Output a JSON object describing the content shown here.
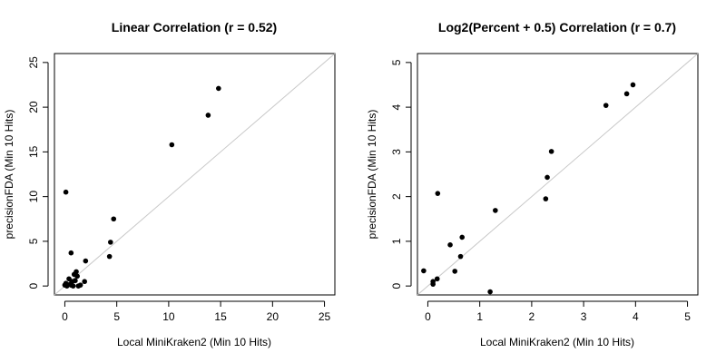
{
  "chart_data": [
    {
      "type": "scatter",
      "title": "Linear Correlation (r = 0.52)",
      "xlabel": "Local MiniKraken2 (Min 10 Hits)",
      "ylabel": "precisionFDA (Min 10 Hits)",
      "xlim": [
        -1,
        26
      ],
      "ylim": [
        -1,
        26
      ],
      "xticks": [
        0,
        5,
        10,
        15,
        20,
        25
      ],
      "yticks": [
        0,
        5,
        10,
        15,
        20,
        25
      ],
      "reference_line": "y = x",
      "grid": false,
      "points": [
        {
          "x": 0.0,
          "y": 0.1
        },
        {
          "x": 0.1,
          "y": 0.3
        },
        {
          "x": 0.2,
          "y": 0.0
        },
        {
          "x": 0.4,
          "y": 0.8
        },
        {
          "x": 0.5,
          "y": 0.2
        },
        {
          "x": 0.6,
          "y": 0.1
        },
        {
          "x": 0.7,
          "y": 0.5
        },
        {
          "x": 0.8,
          "y": 0.0
        },
        {
          "x": 0.9,
          "y": 1.3
        },
        {
          "x": 1.0,
          "y": 0.6
        },
        {
          "x": 1.1,
          "y": 1.6
        },
        {
          "x": 1.2,
          "y": 1.1
        },
        {
          "x": 1.3,
          "y": 0.0
        },
        {
          "x": 1.5,
          "y": 0.1
        },
        {
          "x": 1.9,
          "y": 0.5
        },
        {
          "x": 2.0,
          "y": 2.8
        },
        {
          "x": 0.6,
          "y": 3.7
        },
        {
          "x": 0.1,
          "y": 10.5
        },
        {
          "x": 4.3,
          "y": 3.3
        },
        {
          "x": 4.4,
          "y": 4.9
        },
        {
          "x": 4.7,
          "y": 7.5
        },
        {
          "x": 10.3,
          "y": 15.8
        },
        {
          "x": 13.8,
          "y": 19.1
        },
        {
          "x": 14.8,
          "y": 22.1
        }
      ]
    },
    {
      "type": "scatter",
      "title": "Log2(Percent + 0.5) Correlation (r = 0.7)",
      "xlabel": "Local MiniKraken2 (Min 10 Hits)",
      "ylabel": "precisionFDA (Min 10 Hits)",
      "xlim": [
        -0.2,
        5.2
      ],
      "ylim": [
        -0.2,
        5.2
      ],
      "xticks": [
        0,
        1,
        2,
        3,
        4,
        5
      ],
      "yticks": [
        0,
        1,
        2,
        3,
        4,
        5
      ],
      "reference_line": "y = x",
      "grid": false,
      "points": [
        {
          "x": -0.08,
          "y": 0.34
        },
        {
          "x": 0.1,
          "y": 0.1
        },
        {
          "x": 0.1,
          "y": 0.04
        },
        {
          "x": 0.18,
          "y": 0.16
        },
        {
          "x": 0.19,
          "y": 2.07
        },
        {
          "x": 0.43,
          "y": 0.92
        },
        {
          "x": 0.52,
          "y": 0.33
        },
        {
          "x": 0.63,
          "y": 0.66
        },
        {
          "x": 0.66,
          "y": 1.09
        },
        {
          "x": 1.2,
          "y": -0.13
        },
        {
          "x": 1.3,
          "y": 1.69
        },
        {
          "x": 2.27,
          "y": 1.95
        },
        {
          "x": 2.3,
          "y": 2.43
        },
        {
          "x": 2.38,
          "y": 3.01
        },
        {
          "x": 3.43,
          "y": 4.04
        },
        {
          "x": 3.83,
          "y": 4.3
        },
        {
          "x": 3.95,
          "y": 4.5
        }
      ]
    }
  ]
}
